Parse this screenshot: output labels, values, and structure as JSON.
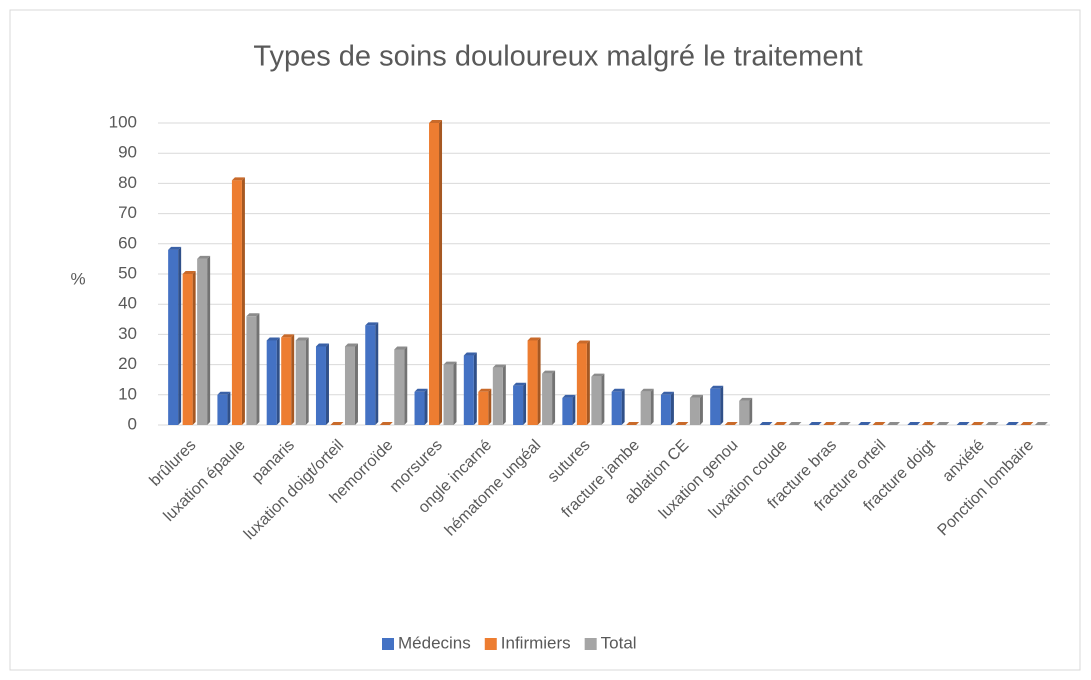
{
  "chart_data": {
    "type": "bar",
    "title": "Types de soins douloureux malgré le traitement",
    "y_label": "%",
    "categories": [
      "brûlures",
      "luxation épaule",
      "panaris",
      "luxation doigt/orteil",
      "hemorroïde",
      "morsures",
      "ongle incarné",
      "hématome ungéal",
      "sutures",
      "fracture jambe",
      "ablation CE",
      "luxation genou",
      "luxation coude",
      "fracture bras",
      "fracture orteil",
      "fracture doigt",
      "anxiété",
      "Ponction lombaire"
    ],
    "series": [
      {
        "name": "Médecins",
        "color": "#4472c4",
        "values": [
          58,
          10,
          28,
          26,
          33,
          11,
          23,
          13,
          9,
          11,
          10,
          12,
          0,
          0,
          0,
          0,
          0,
          0
        ]
      },
      {
        "name": "Infirmiers",
        "color": "#ed7d31",
        "values": [
          50,
          81,
          29,
          0,
          0,
          100,
          11,
          28,
          27,
          0,
          0,
          0,
          0,
          0,
          0,
          0,
          0,
          0
        ]
      },
      {
        "name": "Total",
        "color": "#a5a5a5",
        "values": [
          55,
          36,
          28,
          26,
          25,
          20,
          19,
          17,
          16,
          11,
          9,
          8,
          0,
          0,
          0,
          0,
          0,
          0
        ]
      }
    ],
    "ylim": [
      0,
      100
    ],
    "yticks": [
      0,
      10,
      20,
      30,
      40,
      50,
      60,
      70,
      80,
      90,
      100
    ],
    "grid": true,
    "legend": "bottom"
  }
}
